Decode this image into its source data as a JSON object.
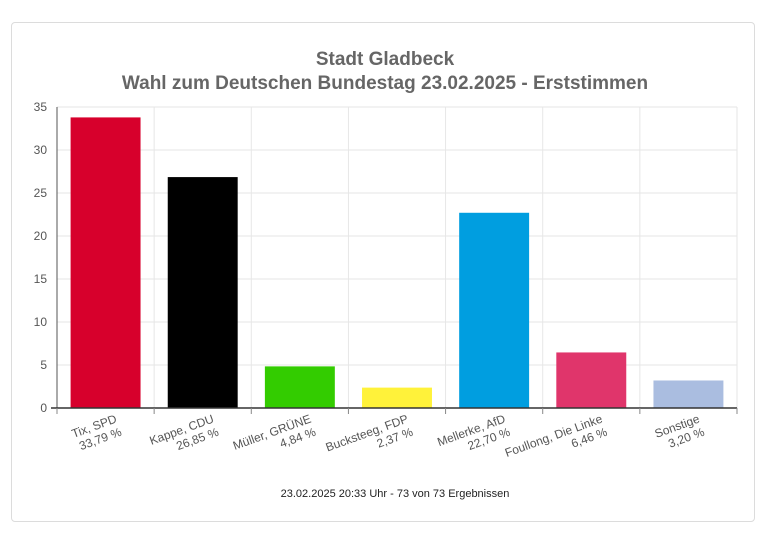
{
  "chart_data": {
    "type": "bar",
    "title": "Stadt Gladbeck",
    "subtitle": "Wahl zum Deutschen Bundestag 23.02.2025  - Erststimmen",
    "categories": [
      "Tix, SPD",
      "Kappe, CDU",
      "Müller, GRÜNE",
      "Bucksteeg, FDP",
      "Mellerke, AfD",
      "Foullong, Die Linke",
      "Sonstige"
    ],
    "value_labels": [
      "33,79 %",
      "26,85 %",
      "4,84 %",
      "2,37 %",
      "22,70 %",
      "6,46 %",
      "3,20 %"
    ],
    "values": [
      33.79,
      26.85,
      4.84,
      2.37,
      22.7,
      6.46,
      3.2
    ],
    "colors": [
      "#d7002c",
      "#000000",
      "#33cc00",
      "#fff23a",
      "#009ee0",
      "#e0356b",
      "#aabde0"
    ],
    "ylim": [
      0,
      35
    ],
    "yticks": [
      0,
      5,
      10,
      15,
      20,
      25,
      30,
      35
    ],
    "xlabel": "",
    "ylabel": "",
    "grid": true,
    "legend": "none"
  },
  "footer": "23.02.2025 20:33 Uhr - 73 von 73 Ergebnissen"
}
